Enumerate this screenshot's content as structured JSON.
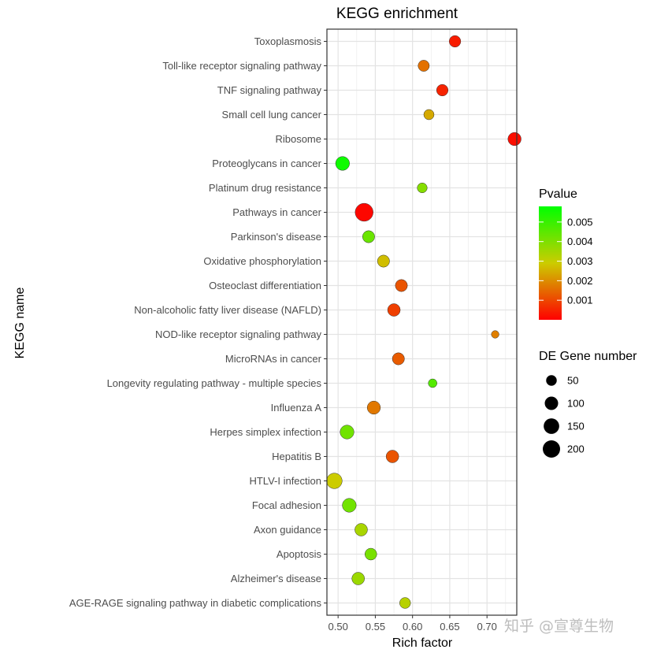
{
  "chart_data": {
    "type": "scatter",
    "title": "KEGG enrichment",
    "xlabel": "Rich factor",
    "ylabel": "KEGG name",
    "xlim": [
      0.485,
      0.74
    ],
    "xticks": [
      0.5,
      0.55,
      0.6,
      0.65,
      0.7
    ],
    "xtick_labels": [
      "0.50",
      "0.55",
      "0.60",
      "0.65",
      "0.70"
    ],
    "grid": true,
    "categories": [
      "AGE-RAGE signaling pathway in diabetic complications",
      "Alzheimer's disease",
      "Apoptosis",
      "Axon guidance",
      "Focal adhesion",
      "HTLV-I infection",
      "Hepatitis B",
      "Herpes simplex infection",
      "Influenza A",
      "Longevity regulating pathway - multiple species",
      "MicroRNAs in cancer",
      "NOD-like receptor signaling pathway",
      "Non-alcoholic fatty liver disease (NAFLD)",
      "Osteoclast differentiation",
      "Oxidative phosphorylation",
      "Parkinson's disease",
      "Pathways in cancer",
      "Platinum drug resistance",
      "Proteoglycans in cancer",
      "Ribosome",
      "Small cell lung cancer",
      "TNF signaling pathway",
      "Toll-like receptor signaling pathway",
      "Toxoplasmosis"
    ],
    "points": [
      {
        "name": "AGE-RAGE signaling pathway in diabetic complications",
        "x": 0.59,
        "pvalue": 0.0032,
        "count": 55
      },
      {
        "name": "Alzheimer's disease",
        "x": 0.527,
        "pvalue": 0.0036,
        "count": 85
      },
      {
        "name": "Apoptosis",
        "x": 0.544,
        "pvalue": 0.0041,
        "count": 70
      },
      {
        "name": "Axon guidance",
        "x": 0.531,
        "pvalue": 0.0034,
        "count": 85
      },
      {
        "name": "Focal adhesion",
        "x": 0.515,
        "pvalue": 0.0042,
        "count": 110
      },
      {
        "name": "HTLV-I infection",
        "x": 0.495,
        "pvalue": 0.0029,
        "count": 150
      },
      {
        "name": "Hepatitis B",
        "x": 0.573,
        "pvalue": 0.0012,
        "count": 85
      },
      {
        "name": "Herpes simplex infection",
        "x": 0.512,
        "pvalue": 0.0042,
        "count": 110
      },
      {
        "name": "Influenza A",
        "x": 0.548,
        "pvalue": 0.0017,
        "count": 95
      },
      {
        "name": "Longevity regulating pathway - multiple species",
        "x": 0.627,
        "pvalue": 0.0046,
        "count": 25
      },
      {
        "name": "MicroRNAs in cancer",
        "x": 0.581,
        "pvalue": 0.0013,
        "count": 75
      },
      {
        "name": "NOD-like receptor signaling pathway",
        "x": 0.711,
        "pvalue": 0.0018,
        "count": 15
      },
      {
        "name": "Non-alcoholic fatty liver disease (NAFLD)",
        "x": 0.575,
        "pvalue": 0.0009,
        "count": 85
      },
      {
        "name": "Osteoclast differentiation",
        "x": 0.585,
        "pvalue": 0.0012,
        "count": 75
      },
      {
        "name": "Oxidative phosphorylation",
        "x": 0.561,
        "pvalue": 0.0027,
        "count": 75
      },
      {
        "name": "Parkinson's disease",
        "x": 0.541,
        "pvalue": 0.0043,
        "count": 75
      },
      {
        "name": "Pathways in cancer",
        "x": 0.535,
        "pvalue": 0.0001,
        "count": 220
      },
      {
        "name": "Platinum drug resistance",
        "x": 0.613,
        "pvalue": 0.0039,
        "count": 40
      },
      {
        "name": "Proteoglycans in cancer",
        "x": 0.506,
        "pvalue": 0.0056,
        "count": 110
      },
      {
        "name": "Ribosome",
        "x": 0.737,
        "pvalue": 0.0002,
        "count": 95
      },
      {
        "name": "Small cell lung cancer",
        "x": 0.622,
        "pvalue": 0.0024,
        "count": 45
      },
      {
        "name": "TNF signaling pathway",
        "x": 0.64,
        "pvalue": 0.0005,
        "count": 65
      },
      {
        "name": "Toll-like receptor signaling pathway",
        "x": 0.615,
        "pvalue": 0.0016,
        "count": 60
      },
      {
        "name": "Toxoplasmosis",
        "x": 0.657,
        "pvalue": 0.0004,
        "count": 65
      }
    ],
    "color_legend": {
      "title": "Pvalue",
      "range": [
        0.0,
        0.0058
      ],
      "ticks": [
        0.005,
        0.004,
        0.003,
        0.002,
        0.001
      ],
      "tick_labels": [
        "0.005",
        "0.004",
        "0.003",
        "0.002",
        "0.001"
      ],
      "colors": {
        "low": "#ff0000",
        "mid": "#cccc00",
        "high": "#00ff00"
      }
    },
    "size_legend": {
      "title": "DE Gene number",
      "values": [
        50,
        100,
        150,
        200
      ],
      "labels": [
        "50",
        "100",
        "150",
        "200"
      ]
    }
  },
  "watermark": "知乎 @宣尊生物"
}
